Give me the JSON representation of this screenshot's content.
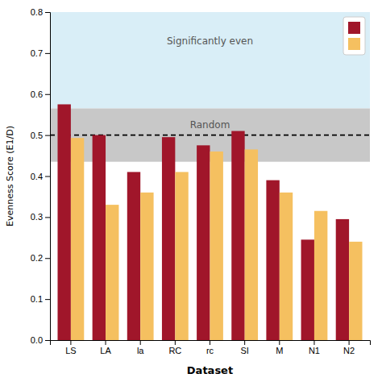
{
  "chart_data": {
    "type": "bar",
    "categories": [
      "LS",
      "LA",
      "la",
      "RC",
      "rc",
      "SI",
      "M",
      "N1",
      "N2"
    ],
    "series": [
      {
        "color": "#A0162A",
        "values": [
          0.575,
          0.5,
          0.41,
          0.495,
          0.475,
          0.51,
          0.39,
          0.245,
          0.295
        ]
      },
      {
        "color": "#F5C060",
        "values": [
          0.493,
          0.33,
          0.36,
          0.41,
          0.46,
          0.465,
          0.36,
          0.315,
          0.24
        ]
      }
    ],
    "random_line": 0.5,
    "random_band_low": 0.435,
    "random_band_high": 0.565,
    "sig_even_low": 0.565,
    "xlabel": "Dataset",
    "ylabel": "Evenness Score (E1/D)",
    "annotations": [
      {
        "text": "Significantly even"
      },
      {
        "text": "Random"
      }
    ],
    "ylim": [
      0.0,
      0.8
    ],
    "yticks": [
      {
        "value": 0.0,
        "label": "0.0"
      },
      0.1,
      0.2,
      0.3,
      0.4,
      0.5,
      0.6,
      0.7,
      0.8
    ],
    "grid": false,
    "legend": "upper right"
  }
}
